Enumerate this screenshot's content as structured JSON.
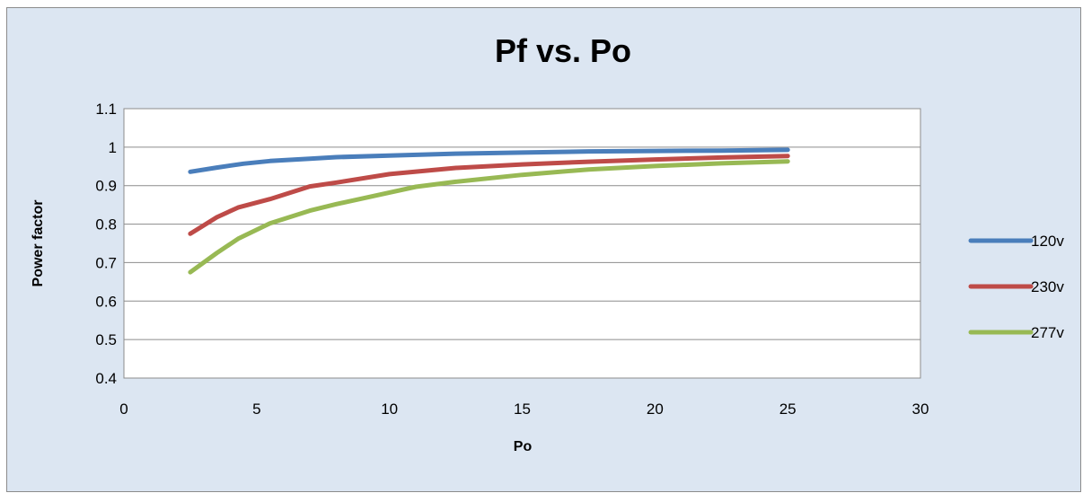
{
  "chart_data": {
    "type": "line",
    "title": "Pf vs. Po",
    "xlabel": "Po",
    "ylabel": "Power factor",
    "xlim": [
      0,
      30
    ],
    "ylim": [
      0.4,
      1.1
    ],
    "x_ticks": [
      "0",
      "5",
      "10",
      "15",
      "20",
      "25",
      "30"
    ],
    "y_ticks": [
      "0.4",
      "0.5",
      "0.6",
      "0.7",
      "0.8",
      "0.9",
      "1",
      "1.1"
    ],
    "grid": "horizontal",
    "legend_position": "right",
    "series": [
      {
        "name": "120v",
        "color": "#4a7ebb",
        "x": [
          2.5,
          3.5,
          4.5,
          5.5,
          7,
          8,
          10,
          12.5,
          15,
          17.5,
          20,
          22.5,
          25
        ],
        "y": [
          0.936,
          0.947,
          0.957,
          0.964,
          0.97,
          0.974,
          0.978,
          0.983,
          0.986,
          0.989,
          0.99,
          0.991,
          0.993
        ]
      },
      {
        "name": "230v",
        "color": "#be4b48",
        "x": [
          2.5,
          3.5,
          4.3,
          5.5,
          7,
          8,
          10,
          12.5,
          15,
          17.5,
          20,
          22.5,
          25
        ],
        "y": [
          0.775,
          0.818,
          0.843,
          0.865,
          0.898,
          0.908,
          0.93,
          0.946,
          0.955,
          0.962,
          0.968,
          0.973,
          0.977
        ]
      },
      {
        "name": "277v",
        "color": "#98b954",
        "x": [
          2.5,
          3.5,
          4.3,
          5.5,
          7,
          8,
          10,
          11,
          12.5,
          15,
          17.5,
          20,
          22.5,
          25
        ],
        "y": [
          0.675,
          0.725,
          0.762,
          0.802,
          0.835,
          0.852,
          0.882,
          0.897,
          0.91,
          0.928,
          0.942,
          0.951,
          0.958,
          0.963
        ]
      }
    ]
  }
}
